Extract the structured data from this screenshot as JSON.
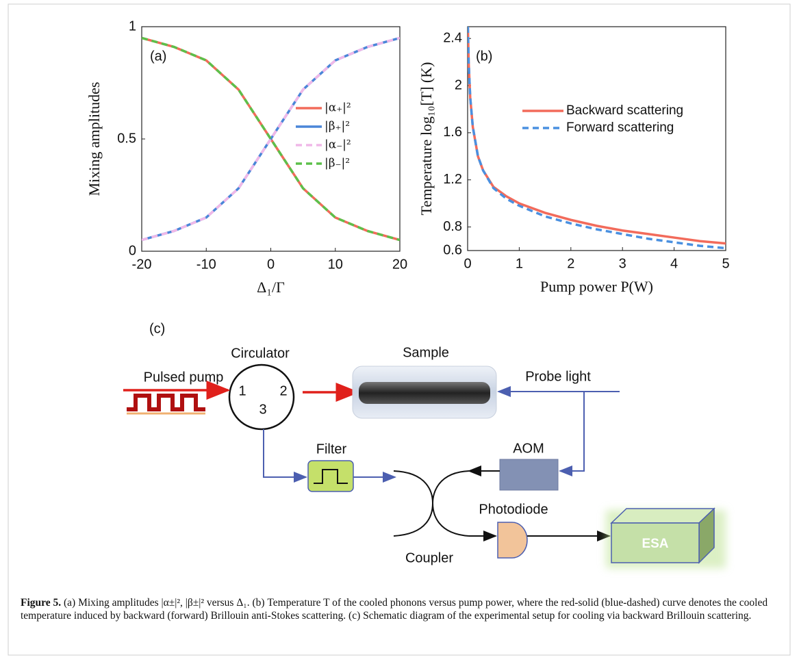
{
  "chart_data": [
    {
      "type": "line",
      "panel_label": "(a)",
      "x_label": "Δ₁/Γ",
      "y_label": "Mixing amplitudes",
      "x": [
        -20,
        -15,
        -10,
        -5,
        0,
        5,
        10,
        15,
        20
      ],
      "xlim": [
        -20,
        20
      ],
      "xticks": [
        -20,
        -10,
        0,
        10,
        20
      ],
      "ylim": [
        0,
        1
      ],
      "yticks": [
        0,
        0.5,
        1
      ],
      "legend": "center right",
      "series": [
        {
          "name": "|α₊|²",
          "color": "#f26b5b",
          "dash": false,
          "values": [
            0.95,
            0.91,
            0.85,
            0.72,
            0.5,
            0.28,
            0.15,
            0.09,
            0.05
          ]
        },
        {
          "name": "|β₊|²",
          "color": "#4a86d8",
          "dash": false,
          "values": [
            0.05,
            0.09,
            0.15,
            0.28,
            0.5,
            0.72,
            0.85,
            0.91,
            0.95
          ]
        },
        {
          "name": "|α₋|²",
          "color": "#f0b8e8",
          "dash": true,
          "values": [
            0.05,
            0.09,
            0.15,
            0.28,
            0.5,
            0.72,
            0.85,
            0.91,
            0.95
          ]
        },
        {
          "name": "|β₋|²",
          "color": "#5cc04a",
          "dash": true,
          "values": [
            0.95,
            0.91,
            0.85,
            0.72,
            0.5,
            0.28,
            0.15,
            0.09,
            0.05
          ]
        }
      ]
    },
    {
      "type": "line",
      "panel_label": "(b)",
      "x_label": "Pump power P(W)",
      "y_label": "Temperature log₁₀[T] (K)",
      "x": [
        0.005,
        0.02,
        0.05,
        0.1,
        0.2,
        0.3,
        0.5,
        0.75,
        1,
        1.5,
        2,
        2.5,
        3,
        3.5,
        4,
        4.5,
        5
      ],
      "xlim": [
        0,
        5
      ],
      "xticks": [
        0,
        1,
        2,
        3,
        4,
        5
      ],
      "ylim": [
        0.6,
        2.5
      ],
      "yticks": [
        0.6,
        0.8,
        1.2,
        1.6,
        2,
        2.4
      ],
      "legend": "upper right",
      "series": [
        {
          "name": "Backward scattering",
          "color": "#f26b5b",
          "dash": false,
          "values": [
            2.5,
            2.2,
            1.9,
            1.65,
            1.4,
            1.28,
            1.14,
            1.06,
            1.0,
            0.92,
            0.86,
            0.81,
            0.77,
            0.74,
            0.71,
            0.68,
            0.66
          ]
        },
        {
          "name": "Forward scattering",
          "color": "#4a90e0",
          "dash": true,
          "values": [
            2.5,
            2.2,
            1.9,
            1.65,
            1.4,
            1.28,
            1.13,
            1.04,
            0.98,
            0.89,
            0.83,
            0.78,
            0.74,
            0.7,
            0.67,
            0.64,
            0.62
          ]
        }
      ]
    }
  ],
  "diagram": {
    "panel_label": "(c)",
    "circulator": "Circulator",
    "port_1": "1",
    "port_2": "2",
    "port_3": "3",
    "sample": "Sample",
    "pulsed_pump": "Pulsed pump",
    "probe_light": "Probe light",
    "filter": "Filter",
    "aom": "AOM",
    "photodiode": "Photodiode",
    "coupler": "Coupler",
    "esa": "ESA"
  },
  "caption": {
    "label": "Figure 5.",
    "text": "(a) Mixing amplitudes |α±|², |β±|² versus Δ₁. (b) Temperature T of the cooled phonons versus pump power, where the red-solid (blue-dashed) curve denotes the cooled temperature induced by backward (forward) Brillouin anti-Stokes scattering. (c) Schematic diagram of the experimental setup for cooling via backward Brillouin scattering."
  }
}
